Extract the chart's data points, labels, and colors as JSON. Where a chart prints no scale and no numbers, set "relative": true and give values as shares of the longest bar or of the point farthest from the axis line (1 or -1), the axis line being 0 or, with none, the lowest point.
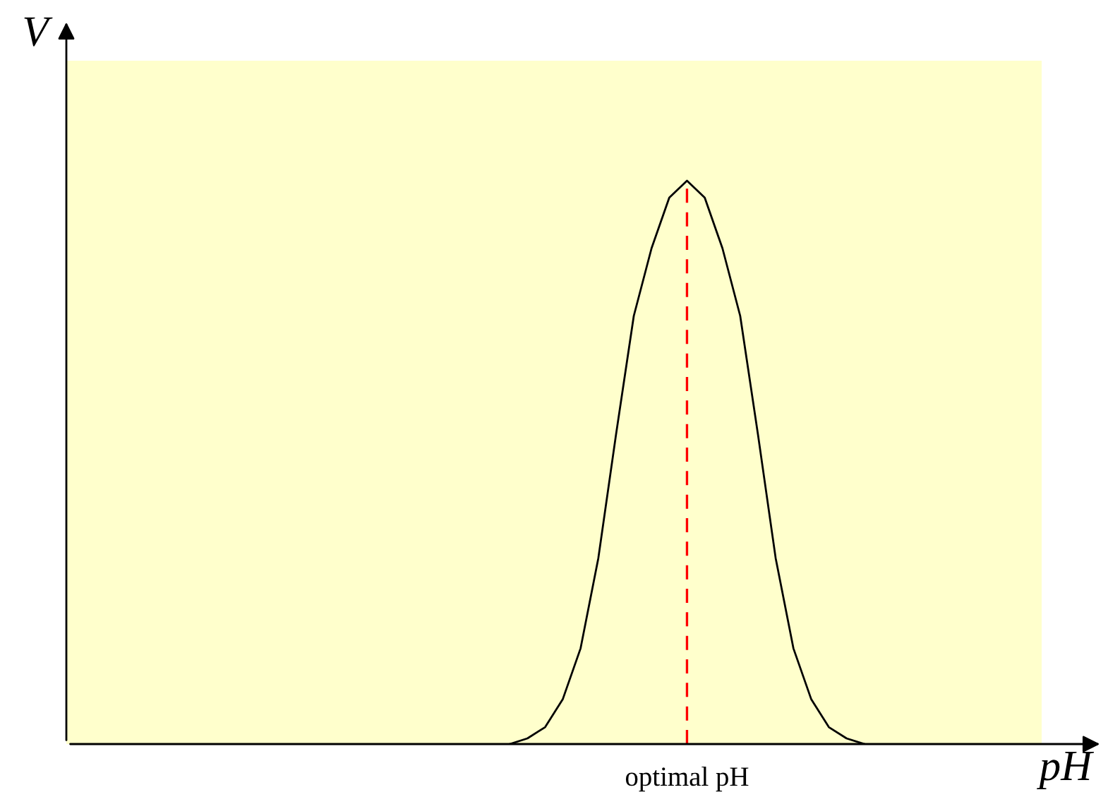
{
  "chart_data": {
    "type": "line",
    "relative": true,
    "xlabel": "pH",
    "ylabel": "V",
    "categories": [
      null,
      null,
      null,
      null,
      null,
      null,
      null,
      null,
      null,
      null,
      null,
      null,
      null,
      null,
      null,
      null,
      null,
      null,
      null,
      null,
      null,
      null,
      null,
      null,
      null,
      null,
      null,
      null,
      null,
      null,
      null,
      null,
      null,
      null,
      null,
      null,
      null,
      null,
      null,
      null,
      null,
      null,
      null,
      null,
      null,
      null,
      null,
      null,
      null,
      null,
      null,
      null,
      null,
      null,
      null,
      null
    ],
    "series": [
      {
        "color": "#000000",
        "values": [
          null,
          null,
          null,
          null,
          null,
          null,
          null,
          null,
          null,
          null,
          null,
          null,
          null,
          null,
          null,
          null,
          null,
          null,
          null,
          null,
          null,
          null,
          null,
          null,
          null,
          0,
          0.01,
          0.03,
          0.08,
          0.17,
          0.33,
          0.55,
          0.76,
          0.88,
          0.97,
          1,
          0.97,
          0.88,
          0.76,
          0.55,
          0.33,
          0.17,
          0.08,
          0.03,
          0.01,
          0,
          null,
          null,
          null,
          null,
          null,
          null,
          null,
          null,
          null,
          null
        ]
      }
    ],
    "annotations": [
      "optimal pH"
    ],
    "grid": false,
    "legend": false,
    "marker": "none",
    "line_style": "solid"
  }
}
